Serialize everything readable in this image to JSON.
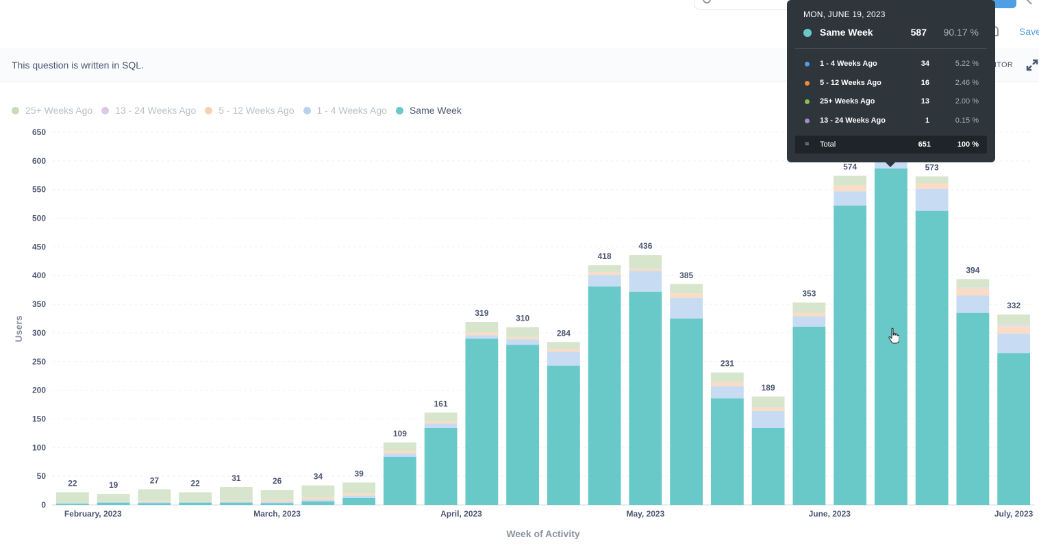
{
  "header": {
    "save_label": "Save"
  },
  "sql_bar": {
    "note": "This question is written in SQL.",
    "editor_label": "EDITOR"
  },
  "legend": [
    {
      "label": "25+ Weeks Ago",
      "color": "#c9dcb9",
      "active": false
    },
    {
      "label": "13 - 24 Weeks Ago",
      "color": "#dcc9e6",
      "active": false
    },
    {
      "label": "5 - 12 Weeks Ago",
      "color": "#f8d1b3",
      "active": false
    },
    {
      "label": "1 - 4 Weeks Ago",
      "color": "#b7d2f1",
      "active": false
    },
    {
      "label": "Same Week",
      "color": "#69c8c8",
      "active": true
    }
  ],
  "tooltip": {
    "date": "MON, JUNE 19, 2023",
    "main": {
      "label": "Same Week",
      "value": "587",
      "percent": "90.17 %",
      "color": "#69c8c8"
    },
    "rows": [
      {
        "label": "1 - 4 Weeks Ago",
        "value": "34",
        "percent": "5.22 %",
        "color": "#509ee3"
      },
      {
        "label": "5 - 12 Weeks Ago",
        "value": "16",
        "percent": "2.46 %",
        "color": "#ef8c3c"
      },
      {
        "label": "25+ Weeks Ago",
        "value": "13",
        "percent": "2.00 %",
        "color": "#88bf4d"
      },
      {
        "label": "13 - 24 Weeks Ago",
        "value": "1",
        "percent": "0.15 %",
        "color": "#a989c5"
      }
    ],
    "total": {
      "symbol": "=",
      "label": "Total",
      "value": "651",
      "percent": "100 %"
    }
  },
  "chart_data": {
    "type": "bar",
    "stacked": true,
    "xlabel": "Week of Activity",
    "ylabel": "Users",
    "ylim": [
      0,
      650
    ],
    "yticks": [
      0,
      50,
      100,
      150,
      200,
      250,
      300,
      350,
      400,
      450,
      500,
      550,
      600,
      650
    ],
    "x_tick_labels": [
      {
        "label": "February, 2023",
        "at_index": 0.5
      },
      {
        "label": "March, 2023",
        "at_index": 5
      },
      {
        "label": "April, 2023",
        "at_index": 9.5
      },
      {
        "label": "May, 2023",
        "at_index": 14
      },
      {
        "label": "June, 2023",
        "at_index": 18.5
      },
      {
        "label": "July, 2023",
        "at_index": 23
      }
    ],
    "totals": [
      22,
      19,
      27,
      22,
      31,
      26,
      34,
      39,
      109,
      161,
      319,
      310,
      284,
      418,
      436,
      385,
      231,
      189,
      353,
      574,
      651,
      573,
      394,
      332
    ],
    "total_labels": [
      "22",
      "19",
      "27",
      "22",
      "31",
      "26",
      "34",
      "39",
      "109",
      "161",
      "319",
      "310",
      "284",
      "418",
      "436",
      "385",
      "231",
      "189",
      "353",
      "574",
      "",
      "573",
      "394",
      "332"
    ],
    "highlight_index": 20,
    "series": [
      {
        "name": "Same Week",
        "color": "#69c8c8",
        "values": [
          2,
          4,
          3,
          4,
          4,
          3,
          6,
          12,
          84,
          134,
          290,
          279,
          243,
          381,
          372,
          325,
          186,
          134,
          311,
          522,
          587,
          513,
          335,
          265
        ]
      },
      {
        "name": "1 - 4 Weeks Ago",
        "color": "#c7dcf3",
        "values": [
          1,
          1,
          2,
          1,
          2,
          3,
          3,
          4,
          6,
          8,
          6,
          10,
          24,
          20,
          36,
          36,
          21,
          30,
          18,
          25,
          34,
          38,
          30,
          34
        ]
      },
      {
        "name": "5 - 12 Weeks Ago",
        "color": "#fadbc4",
        "values": [
          0,
          0,
          2,
          0,
          2,
          3,
          4,
          4,
          5,
          4,
          5,
          4,
          5,
          5,
          4,
          8,
          7,
          6,
          6,
          10,
          16,
          10,
          12,
          12
        ]
      },
      {
        "name": "13 - 24 Weeks Ago",
        "color": "#e6daee",
        "values": [
          0,
          0,
          0,
          0,
          0,
          0,
          0,
          0,
          0,
          0,
          0,
          0,
          0,
          0,
          0,
          0,
          0,
          0,
          0,
          0,
          1,
          0,
          2,
          3
        ]
      },
      {
        "name": "25+ Weeks Ago",
        "color": "#d7e5cc",
        "values": [
          19,
          14,
          20,
          17,
          23,
          17,
          21,
          19,
          14,
          15,
          18,
          17,
          12,
          12,
          24,
          16,
          17,
          19,
          18,
          17,
          13,
          12,
          15,
          18
        ]
      }
    ]
  }
}
